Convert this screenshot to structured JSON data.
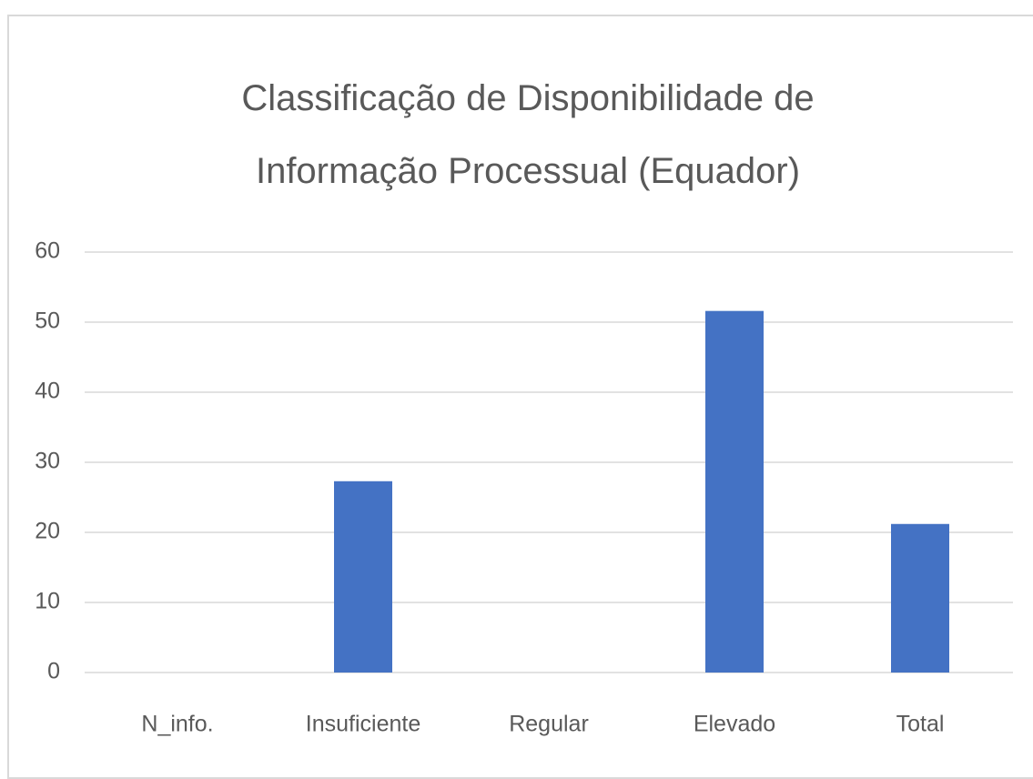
{
  "chart_data": {
    "type": "bar",
    "title": "Classificação de Disponibilidade de Informação Processual (Equador)",
    "categories": [
      "N_info.",
      "Insuficiente",
      "Regular",
      "Elevado",
      "Total"
    ],
    "values": [
      0,
      27.3,
      0,
      51.6,
      21.2
    ],
    "color": "#4472c4",
    "ylim": [
      0,
      60
    ],
    "yticks": [
      0,
      10,
      20,
      30,
      40,
      50,
      60
    ],
    "grid": true
  }
}
